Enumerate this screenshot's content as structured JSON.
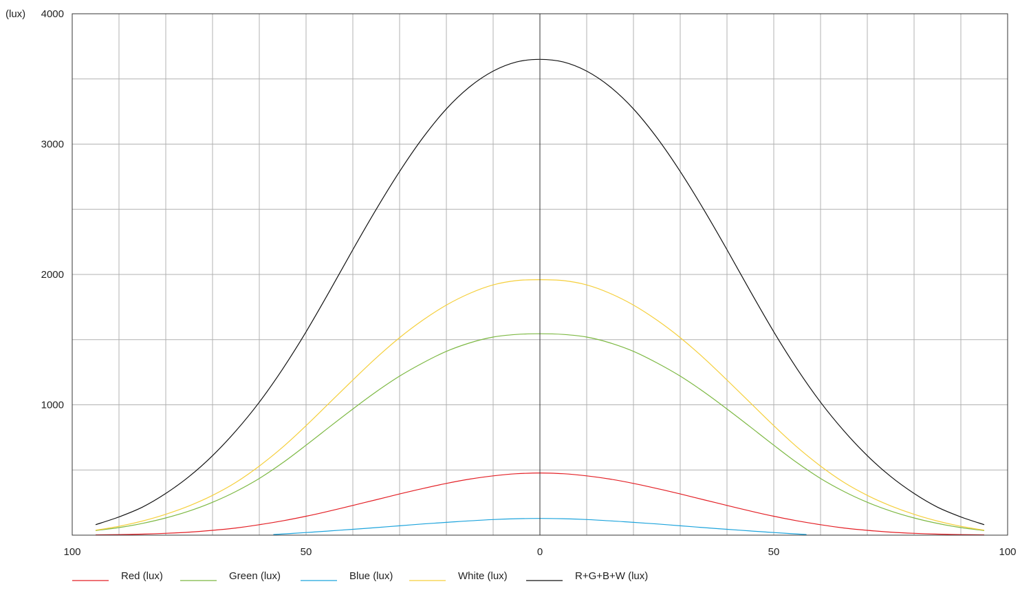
{
  "chart_data": {
    "type": "line",
    "title": "",
    "ylabel": "(lux)",
    "xlabel": "",
    "x_ticks": [
      {
        "value": -100,
        "label": "100"
      },
      {
        "value": -50,
        "label": "50"
      },
      {
        "value": 0,
        "label": "0"
      },
      {
        "value": 50,
        "label": "50"
      },
      {
        "value": 100,
        "label": "100"
      }
    ],
    "y_ticks": [
      {
        "value": 1000,
        "label": "1000"
      },
      {
        "value": 2000,
        "label": "2000"
      },
      {
        "value": 3000,
        "label": "3000"
      },
      {
        "value": 4000,
        "label": "4000"
      }
    ],
    "xlim": [
      -100,
      100
    ],
    "ylim": [
      0,
      4000
    ],
    "grid": {
      "on": true,
      "x_step": 10,
      "y_step": 500
    },
    "legend": {
      "placement": "bottom-left"
    },
    "x": [
      -95,
      -90,
      -85,
      -80,
      -75,
      -70,
      -65,
      -60,
      -55,
      -50,
      -45,
      -40,
      -35,
      -30,
      -25,
      -20,
      -15,
      -10,
      -5,
      0,
      5,
      10,
      15,
      20,
      25,
      30,
      35,
      40,
      45,
      50,
      55,
      60,
      65,
      70,
      75,
      80,
      85,
      90,
      95
    ],
    "series": [
      {
        "name": "Red (lux)",
        "color": "#e31e24",
        "values": [
          2,
          4,
          8,
          14,
          23,
          37,
          55,
          80,
          110,
          145,
          185,
          228,
          272,
          316,
          358,
          397,
          430,
          455,
          471,
          477,
          471,
          455,
          430,
          397,
          358,
          316,
          272,
          228,
          185,
          145,
          110,
          80,
          55,
          37,
          23,
          14,
          8,
          4,
          2
        ]
      },
      {
        "name": "Green (lux)",
        "color": "#7cb842",
        "values": [
          35,
          58,
          90,
          132,
          185,
          252,
          335,
          435,
          555,
          690,
          830,
          968,
          1100,
          1220,
          1322,
          1410,
          1475,
          1520,
          1540,
          1545,
          1540,
          1520,
          1475,
          1410,
          1322,
          1220,
          1100,
          968,
          830,
          690,
          555,
          435,
          335,
          252,
          185,
          132,
          90,
          58,
          35
        ]
      },
      {
        "name": "Blue (lux)",
        "color": "#1ba3dc",
        "x": [
          -57,
          -50,
          -45,
          -40,
          -35,
          -30,
          -25,
          -20,
          -15,
          -10,
          -5,
          0,
          5,
          10,
          15,
          20,
          25,
          30,
          35,
          40,
          45,
          50,
          57
        ],
        "values": [
          5,
          20,
          32,
          45,
          58,
          72,
          86,
          98,
          110,
          120,
          126,
          128,
          126,
          120,
          110,
          98,
          86,
          72,
          58,
          45,
          32,
          20,
          5
        ]
      },
      {
        "name": "White (lux)",
        "color": "#f5cf3b",
        "values": [
          38,
          68,
          108,
          160,
          225,
          305,
          405,
          530,
          675,
          840,
          1015,
          1190,
          1360,
          1515,
          1650,
          1765,
          1855,
          1920,
          1953,
          1960,
          1953,
          1920,
          1855,
          1765,
          1650,
          1515,
          1360,
          1190,
          1015,
          840,
          675,
          530,
          405,
          305,
          225,
          160,
          108,
          68,
          38
        ]
      },
      {
        "name": "R+G+B+W (lux)",
        "color": "#111111",
        "values": [
          80,
          140,
          215,
          320,
          450,
          610,
          800,
          1020,
          1275,
          1560,
          1870,
          2190,
          2500,
          2790,
          3050,
          3270,
          3440,
          3560,
          3630,
          3650,
          3630,
          3560,
          3440,
          3270,
          3050,
          2790,
          2500,
          2190,
          1870,
          1560,
          1275,
          1020,
          800,
          610,
          450,
          320,
          215,
          140,
          80
        ]
      }
    ]
  }
}
